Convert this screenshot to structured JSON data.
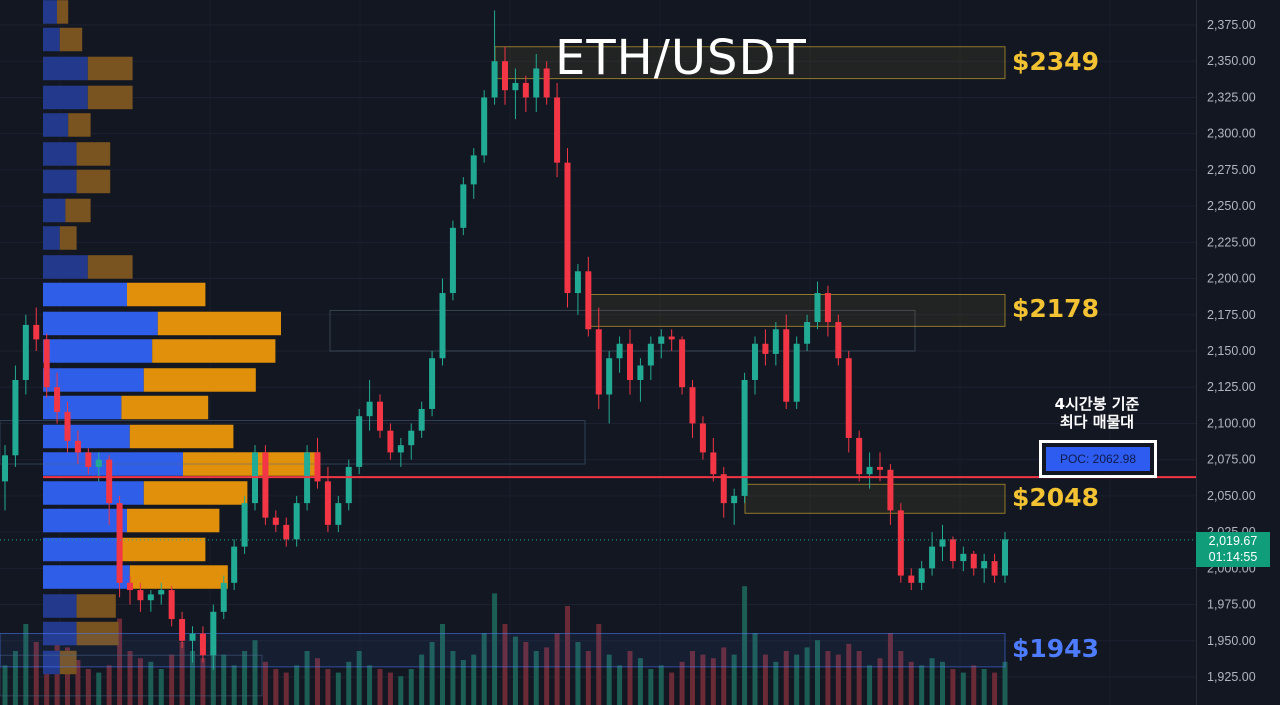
{
  "chart_data": {
    "type": "candlestick",
    "title": "ETH/USDT",
    "y_axis": {
      "ticks": [
        "2,375.00",
        "2,350.00",
        "2,325.00",
        "2,300.00",
        "2,275.00",
        "2,250.00",
        "2,225.00",
        "2,200.00",
        "2,175.00",
        "2,150.00",
        "2,125.00",
        "2,100.00",
        "2,075.00",
        "2,050.00",
        "2,025.00",
        "2,000.00",
        "1,975.00",
        "1,950.00",
        "1,925.00"
      ],
      "tick_values": [
        2375,
        2350,
        2325,
        2300,
        2275,
        2250,
        2225,
        2200,
        2175,
        2150,
        2125,
        2100,
        2075,
        2050,
        2025,
        2000,
        1975,
        1950,
        1925
      ],
      "range": [
        1919,
        2394
      ]
    },
    "levels": [
      {
        "label": "$2349",
        "low": 2338,
        "high": 2360,
        "color": "#f2c233"
      },
      {
        "label": "$2178",
        "low": 2167,
        "high": 2189,
        "color": "#f2c233"
      },
      {
        "label": "$2048",
        "low": 2038,
        "high": 2058,
        "color": "#f2c233"
      },
      {
        "label": "$1943",
        "low": 1932,
        "high": 1955,
        "color": "#4d7cff"
      }
    ],
    "poc": {
      "label": "POC: 2062.98",
      "value": 2062.98,
      "color": "#f23645"
    },
    "annotation": {
      "line1": "4시간봉 기준",
      "line2": "최다 매물대"
    },
    "current_price": {
      "price": "2,019.67",
      "countdown": "01:14:55",
      "value": 2019.67
    },
    "volume_profile": [
      {
        "price": 2384,
        "buy": 0.05,
        "sell": 0.04
      },
      {
        "price": 2365,
        "buy": 0.06,
        "sell": 0.08
      },
      {
        "price": 2345,
        "buy": 0.16,
        "sell": 0.16
      },
      {
        "price": 2325,
        "buy": 0.16,
        "sell": 0.16
      },
      {
        "price": 2306,
        "buy": 0.09,
        "sell": 0.08
      },
      {
        "price": 2286,
        "buy": 0.12,
        "sell": 0.12
      },
      {
        "price": 2267,
        "buy": 0.12,
        "sell": 0.12
      },
      {
        "price": 2247,
        "buy": 0.08,
        "sell": 0.09
      },
      {
        "price": 2228,
        "buy": 0.06,
        "sell": 0.06
      },
      {
        "price": 2208,
        "buy": 0.16,
        "sell": 0.16
      },
      {
        "price": 2189,
        "buy": 0.3,
        "sell": 0.28
      },
      {
        "price": 2169,
        "buy": 0.41,
        "sell": 0.44
      },
      {
        "price": 2150,
        "buy": 0.39,
        "sell": 0.44
      },
      {
        "price": 2130,
        "buy": 0.36,
        "sell": 0.4
      },
      {
        "price": 2111,
        "buy": 0.28,
        "sell": 0.31
      },
      {
        "price": 2091,
        "buy": 0.31,
        "sell": 0.37
      },
      {
        "price": 2072,
        "buy": 0.5,
        "sell": 0.49
      },
      {
        "price": 2052,
        "buy": 0.36,
        "sell": 0.37
      },
      {
        "price": 2033,
        "buy": 0.3,
        "sell": 0.33
      },
      {
        "price": 2013,
        "buy": 0.28,
        "sell": 0.3
      },
      {
        "price": 1994,
        "buy": 0.31,
        "sell": 0.35
      },
      {
        "price": 1974,
        "buy": 0.12,
        "sell": 0.14
      },
      {
        "price": 1955,
        "buy": 0.12,
        "sell": 0.15
      },
      {
        "price": 1935,
        "buy": 0.06,
        "sell": 0.06
      }
    ],
    "candles": [
      [
        2060,
        2085,
        2040,
        2078
      ],
      [
        2078,
        2140,
        2070,
        2130
      ],
      [
        2130,
        2175,
        2120,
        2168
      ],
      [
        2168,
        2180,
        2150,
        2158
      ],
      [
        2158,
        2162,
        2118,
        2125
      ],
      [
        2125,
        2135,
        2100,
        2108
      ],
      [
        2108,
        2115,
        2080,
        2088
      ],
      [
        2088,
        2095,
        2072,
        2080
      ],
      [
        2080,
        2083,
        2065,
        2070
      ],
      [
        2070,
        2080,
        2060,
        2075
      ],
      [
        2075,
        2078,
        2030,
        2045
      ],
      [
        2045,
        2050,
        1980,
        1990
      ],
      [
        1990,
        1995,
        1975,
        1985
      ],
      [
        1985,
        1990,
        1970,
        1978
      ],
      [
        1978,
        1985,
        1970,
        1982
      ],
      [
        1982,
        1990,
        1975,
        1985
      ],
      [
        1985,
        1988,
        1960,
        1965
      ],
      [
        1965,
        1970,
        1945,
        1950
      ],
      [
        1950,
        1960,
        1935,
        1955
      ],
      [
        1955,
        1960,
        1935,
        1940
      ],
      [
        1940,
        1975,
        1930,
        1970
      ],
      [
        1970,
        1995,
        1965,
        1990
      ],
      [
        1990,
        2020,
        1985,
        2015
      ],
      [
        2015,
        2050,
        2010,
        2045
      ],
      [
        2045,
        2085,
        2040,
        2080
      ],
      [
        2080,
        2085,
        2030,
        2035
      ],
      [
        2035,
        2040,
        2025,
        2030
      ],
      [
        2030,
        2035,
        2015,
        2020
      ],
      [
        2020,
        2050,
        2015,
        2045
      ],
      [
        2045,
        2085,
        2040,
        2080
      ],
      [
        2080,
        2090,
        2055,
        2060
      ],
      [
        2060,
        2070,
        2025,
        2030
      ],
      [
        2030,
        2050,
        2025,
        2045
      ],
      [
        2045,
        2075,
        2040,
        2070
      ],
      [
        2070,
        2110,
        2065,
        2105
      ],
      [
        2105,
        2130,
        2095,
        2115
      ],
      [
        2115,
        2120,
        2090,
        2095
      ],
      [
        2095,
        2100,
        2075,
        2080
      ],
      [
        2080,
        2090,
        2070,
        2085
      ],
      [
        2085,
        2100,
        2075,
        2095
      ],
      [
        2095,
        2115,
        2090,
        2110
      ],
      [
        2110,
        2150,
        2105,
        2145
      ],
      [
        2145,
        2200,
        2140,
        2190
      ],
      [
        2190,
        2240,
        2185,
        2235
      ],
      [
        2235,
        2270,
        2230,
        2265
      ],
      [
        2265,
        2290,
        2255,
        2285
      ],
      [
        2285,
        2330,
        2280,
        2325
      ],
      [
        2325,
        2385,
        2320,
        2350
      ],
      [
        2350,
        2360,
        2320,
        2330
      ],
      [
        2330,
        2345,
        2310,
        2335
      ],
      [
        2335,
        2340,
        2315,
        2325
      ],
      [
        2325,
        2355,
        2315,
        2345
      ],
      [
        2345,
        2350,
        2320,
        2325
      ],
      [
        2325,
        2335,
        2270,
        2280
      ],
      [
        2280,
        2290,
        2180,
        2190
      ],
      [
        2190,
        2210,
        2175,
        2205
      ],
      [
        2205,
        2215,
        2160,
        2165
      ],
      [
        2165,
        2180,
        2110,
        2120
      ],
      [
        2120,
        2150,
        2100,
        2145
      ],
      [
        2145,
        2160,
        2135,
        2155
      ],
      [
        2155,
        2165,
        2120,
        2130
      ],
      [
        2130,
        2145,
        2115,
        2140
      ],
      [
        2140,
        2160,
        2130,
        2155
      ],
      [
        2155,
        2165,
        2145,
        2160
      ],
      [
        2160,
        2165,
        2150,
        2158
      ],
      [
        2158,
        2160,
        2120,
        2125
      ],
      [
        2125,
        2130,
        2090,
        2100
      ],
      [
        2100,
        2105,
        2075,
        2080
      ],
      [
        2080,
        2090,
        2060,
        2065
      ],
      [
        2065,
        2070,
        2035,
        2045
      ],
      [
        2045,
        2055,
        2030,
        2050
      ],
      [
        2050,
        2135,
        2045,
        2130
      ],
      [
        2130,
        2160,
        2120,
        2155
      ],
      [
        2155,
        2165,
        2140,
        2148
      ],
      [
        2148,
        2170,
        2140,
        2165
      ],
      [
        2165,
        2175,
        2110,
        2115
      ],
      [
        2115,
        2160,
        2110,
        2155
      ],
      [
        2155,
        2175,
        2150,
        2170
      ],
      [
        2170,
        2198,
        2165,
        2190
      ],
      [
        2190,
        2195,
        2160,
        2170
      ],
      [
        2170,
        2175,
        2140,
        2145
      ],
      [
        2145,
        2150,
        2080,
        2090
      ],
      [
        2090,
        2095,
        2060,
        2065
      ],
      [
        2065,
        2080,
        2055,
        2070
      ],
      [
        2070,
        2080,
        2060,
        2068
      ],
      [
        2068,
        2072,
        2030,
        2040
      ],
      [
        2040,
        2045,
        1990,
        1995
      ],
      [
        1995,
        2000,
        1985,
        1990
      ],
      [
        1990,
        2005,
        1985,
        2000
      ],
      [
        2000,
        2025,
        1995,
        2015
      ],
      [
        2015,
        2030,
        2005,
        2020
      ],
      [
        2020,
        2022,
        2000,
        2005
      ],
      [
        2005,
        2015,
        1998,
        2010
      ],
      [
        2010,
        2012,
        1995,
        2000
      ],
      [
        2000,
        2010,
        1990,
        2005
      ],
      [
        2005,
        2010,
        1990,
        1995
      ],
      [
        1995,
        2025,
        1990,
        2020
      ]
    ]
  },
  "volume_bars": [
    0.22,
    0.3,
    0.45,
    0.35,
    0.28,
    0.4,
    0.32,
    0.25,
    0.2,
    0.18,
    0.22,
    0.48,
    0.3,
    0.26,
    0.24,
    0.2,
    0.28,
    0.35,
    0.3,
    0.26,
    0.33,
    0.28,
    0.22,
    0.3,
    0.36,
    0.24,
    0.2,
    0.18,
    0.22,
    0.3,
    0.26,
    0.2,
    0.18,
    0.24,
    0.3,
    0.22,
    0.2,
    0.18,
    0.16,
    0.2,
    0.28,
    0.35,
    0.45,
    0.3,
    0.25,
    0.28,
    0.4,
    0.62,
    0.45,
    0.38,
    0.35,
    0.3,
    0.32,
    0.4,
    0.55,
    0.35,
    0.3,
    0.45,
    0.28,
    0.22,
    0.3,
    0.26,
    0.2,
    0.22,
    0.18,
    0.24,
    0.3,
    0.28,
    0.26,
    0.32,
    0.28,
    0.66,
    0.4,
    0.28,
    0.24,
    0.3,
    0.28,
    0.32,
    0.36,
    0.3,
    0.28,
    0.34,
    0.3,
    0.22,
    0.26,
    0.4,
    0.3,
    0.24,
    0.22,
    0.26,
    0.24,
    0.2,
    0.18,
    0.22,
    0.2,
    0.18,
    0.24
  ]
}
